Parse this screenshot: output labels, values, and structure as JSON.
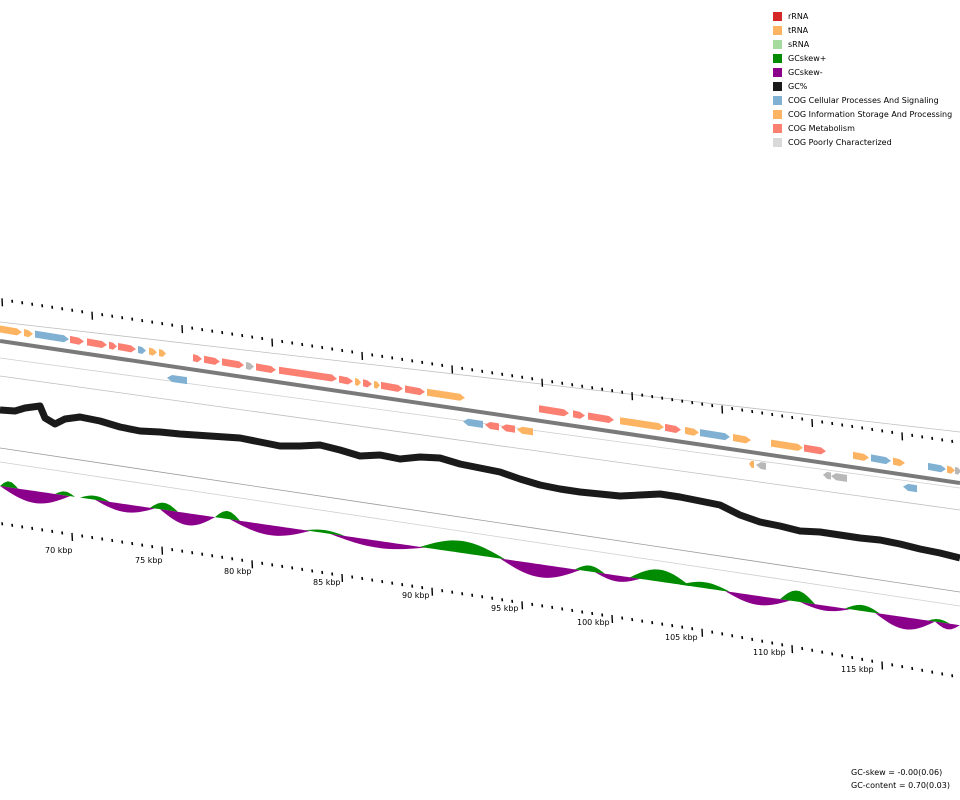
{
  "legend": {
    "items": [
      {
        "label": "rRNA",
        "color": "#d62728"
      },
      {
        "label": "tRNA",
        "color": "#fdb462"
      },
      {
        "label": "sRNA",
        "color": "#a6dba0"
      },
      {
        "label": "GCskew+",
        "color": "#008b00"
      },
      {
        "label": "GCskew-",
        "color": "#8b008b"
      },
      {
        "label": "GC%",
        "color": "#1a1a1a"
      },
      {
        "label": "COG Cellular Processes And Signaling",
        "color": "#80b1d3"
      },
      {
        "label": "COG Information Storage And Processing",
        "color": "#fdb462"
      },
      {
        "label": "COG Metabolism",
        "color": "#fb8072"
      },
      {
        "label": "COG Poorly Characterized",
        "color": "#d9d9d9"
      }
    ]
  },
  "axis": {
    "tick_labels": [
      "70 kbp",
      "75 kbp",
      "80 kbp",
      "85 kbp",
      "90 kbp",
      "95 kbp",
      "100 kbp",
      "105 kbp",
      "110 kbp",
      "115 kbp"
    ]
  },
  "stats": {
    "gc_skew": "GC-skew = -0.00(0.06)",
    "gc_content": "GC-content = 0.70(0.03)"
  }
}
